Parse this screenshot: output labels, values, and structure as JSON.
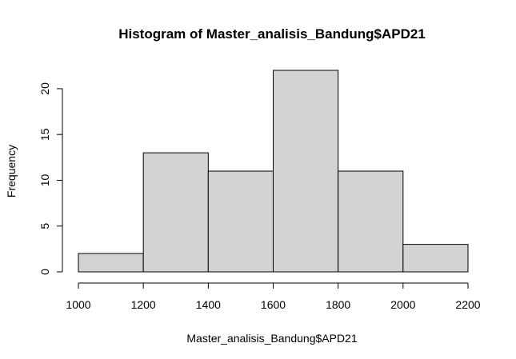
{
  "chart_data": {
    "type": "bar",
    "title": "Histogram of Master_analisis_Bandung$APD21",
    "xlabel": "Master_analisis_Bandung$APD21",
    "ylabel": "Frequency",
    "bins": [
      {
        "from": 1000,
        "to": 1200,
        "count": 2
      },
      {
        "from": 1200,
        "to": 1400,
        "count": 13
      },
      {
        "from": 1400,
        "to": 1600,
        "count": 11
      },
      {
        "from": 1600,
        "to": 1800,
        "count": 22
      },
      {
        "from": 1800,
        "to": 2000,
        "count": 11
      },
      {
        "from": 2000,
        "to": 2200,
        "count": 3
      }
    ],
    "xticks": [
      1000,
      1200,
      1400,
      1600,
      1800,
      2000,
      2200
    ],
    "yticks": [
      0,
      5,
      10,
      15,
      20
    ],
    "xlim": [
      1000,
      2200
    ],
    "ylim": [
      0,
      22
    ],
    "bar_color": "#d3d3d3",
    "grid": false
  }
}
